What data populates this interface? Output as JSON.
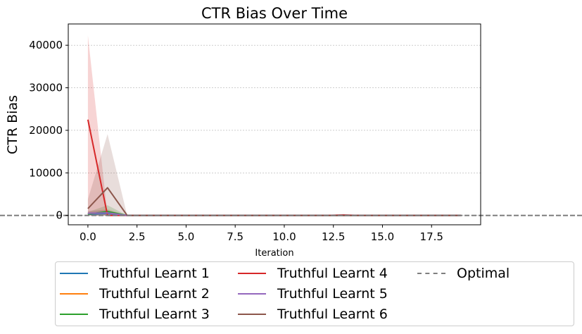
{
  "chart_data": {
    "type": "line",
    "title": "CTR Bias Over Time",
    "xlabel": "Iteration",
    "ylabel": "CTR Bias",
    "xlim": [
      -1,
      20
    ],
    "ylim": [
      -2200,
      45000
    ],
    "x_ticks": [
      0.0,
      2.5,
      5.0,
      7.5,
      10.0,
      12.5,
      15.0,
      17.5
    ],
    "x_tick_labels": [
      "0.0",
      "2.5",
      "5.0",
      "7.5",
      "10.0",
      "12.5",
      "15.0",
      "17.5"
    ],
    "y_ticks": [
      0,
      10000,
      20000,
      30000,
      40000
    ],
    "y_tick_labels": [
      "0",
      "10000",
      "20000",
      "30000",
      "40000"
    ],
    "grid": "horizontal dashed",
    "legend_placement": "below",
    "x": [
      0,
      1,
      2,
      3,
      4,
      5,
      6,
      7,
      8,
      9,
      10,
      11,
      12,
      13,
      14,
      15,
      16,
      17,
      18,
      19
    ],
    "series": [
      {
        "name": "Truthful Learnt 1",
        "color": "#1f77b4",
        "values": [
          300,
          500,
          0,
          0,
          0,
          0,
          0,
          0,
          0,
          0,
          0,
          0,
          0,
          0,
          0,
          0,
          0,
          0,
          0,
          0
        ],
        "lower": [
          0,
          0,
          0,
          0,
          0,
          0,
          0,
          0,
          0,
          0,
          0,
          0,
          0,
          0,
          0,
          0,
          0,
          0,
          0,
          0
        ],
        "upper": [
          700,
          1200,
          0,
          0,
          0,
          0,
          0,
          0,
          0,
          0,
          0,
          0,
          0,
          0,
          0,
          0,
          0,
          0,
          0,
          0
        ]
      },
      {
        "name": "Truthful Learnt 2",
        "color": "#ff7f0e",
        "values": [
          400,
          700,
          0,
          0,
          0,
          0,
          0,
          0,
          0,
          0,
          0,
          0,
          0,
          0,
          0,
          0,
          0,
          0,
          0,
          0
        ],
        "lower": [
          0,
          0,
          0,
          0,
          0,
          0,
          0,
          0,
          0,
          0,
          0,
          0,
          0,
          0,
          0,
          0,
          0,
          0,
          0,
          0
        ],
        "upper": [
          900,
          1500,
          0,
          0,
          0,
          0,
          0,
          0,
          0,
          0,
          0,
          0,
          0,
          0,
          0,
          0,
          0,
          0,
          0,
          0
        ]
      },
      {
        "name": "Truthful Learnt 3",
        "color": "#2ca02c",
        "values": [
          300,
          900,
          0,
          0,
          0,
          0,
          0,
          0,
          0,
          0,
          0,
          0,
          0,
          0,
          0,
          0,
          0,
          0,
          0,
          0
        ],
        "lower": [
          0,
          0,
          0,
          0,
          0,
          0,
          0,
          0,
          0,
          0,
          0,
          0,
          0,
          0,
          0,
          0,
          0,
          0,
          0,
          0
        ],
        "upper": [
          800,
          2400,
          0,
          0,
          0,
          0,
          0,
          0,
          0,
          0,
          0,
          0,
          0,
          0,
          0,
          0,
          0,
          0,
          0,
          0
        ]
      },
      {
        "name": "Truthful Learnt 4",
        "color": "#d62728",
        "values": [
          22500,
          0,
          0,
          0,
          0,
          0,
          0,
          0,
          0,
          0,
          0,
          0,
          0,
          100,
          0,
          0,
          0,
          0,
          0,
          0
        ],
        "lower": [
          0,
          0,
          0,
          0,
          0,
          0,
          0,
          0,
          0,
          0,
          0,
          0,
          0,
          0,
          0,
          0,
          0,
          0,
          0,
          0
        ],
        "upper": [
          42300,
          0,
          0,
          0,
          0,
          0,
          0,
          0,
          0,
          0,
          0,
          0,
          0,
          350,
          0,
          0,
          0,
          0,
          0,
          0
        ]
      },
      {
        "name": "Truthful Learnt 5",
        "color": "#9467bd",
        "values": [
          500,
          600,
          0,
          0,
          0,
          0,
          0,
          0,
          0,
          0,
          0,
          0,
          0,
          0,
          0,
          0,
          0,
          0,
          0,
          0
        ],
        "lower": [
          0,
          0,
          0,
          0,
          0,
          0,
          0,
          0,
          0,
          0,
          0,
          0,
          0,
          0,
          0,
          0,
          0,
          0,
          0,
          0
        ],
        "upper": [
          1100,
          1300,
          0,
          0,
          0,
          0,
          0,
          0,
          0,
          0,
          0,
          0,
          0,
          0,
          0,
          0,
          0,
          0,
          0,
          0
        ]
      },
      {
        "name": "Truthful Learnt 6",
        "color": "#8c564b",
        "values": [
          1600,
          6500,
          0,
          0,
          0,
          0,
          0,
          0,
          0,
          0,
          0,
          0,
          0,
          0,
          0,
          0,
          0,
          0,
          0,
          0
        ],
        "lower": [
          0,
          0,
          0,
          0,
          0,
          0,
          0,
          0,
          0,
          0,
          0,
          0,
          0,
          0,
          0,
          0,
          0,
          0,
          0,
          0
        ],
        "upper": [
          3800,
          19100,
          0,
          0,
          0,
          0,
          0,
          0,
          0,
          0,
          0,
          0,
          0,
          0,
          0,
          0,
          0,
          0,
          0,
          0
        ]
      }
    ],
    "reference_line": {
      "name": "Optimal",
      "color": "#7f7f7f",
      "style": "dashed",
      "y": 0
    }
  }
}
